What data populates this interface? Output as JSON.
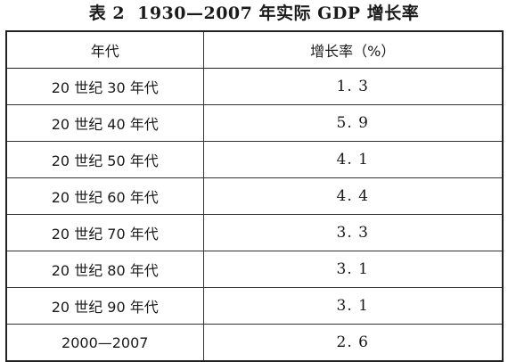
{
  "caption": {
    "label": "表 2",
    "title": "1930—2007 年实际 GDP 增长率"
  },
  "table": {
    "headers": [
      "年代",
      "增长率（%）"
    ],
    "rows": [
      [
        "20 世纪 30 年代",
        "1. 3"
      ],
      [
        "20 世纪 40 年代",
        "5. 9"
      ],
      [
        "20 世纪 50 年代",
        "4. 1"
      ],
      [
        "20 世纪 60 年代",
        "4. 4"
      ],
      [
        "20 世纪 70 年代",
        "3. 3"
      ],
      [
        "20 世纪 80 年代",
        "3. 1"
      ],
      [
        "20 世纪 90 年代",
        "3. 1"
      ],
      [
        "2000—2007",
        "2. 6"
      ]
    ]
  }
}
